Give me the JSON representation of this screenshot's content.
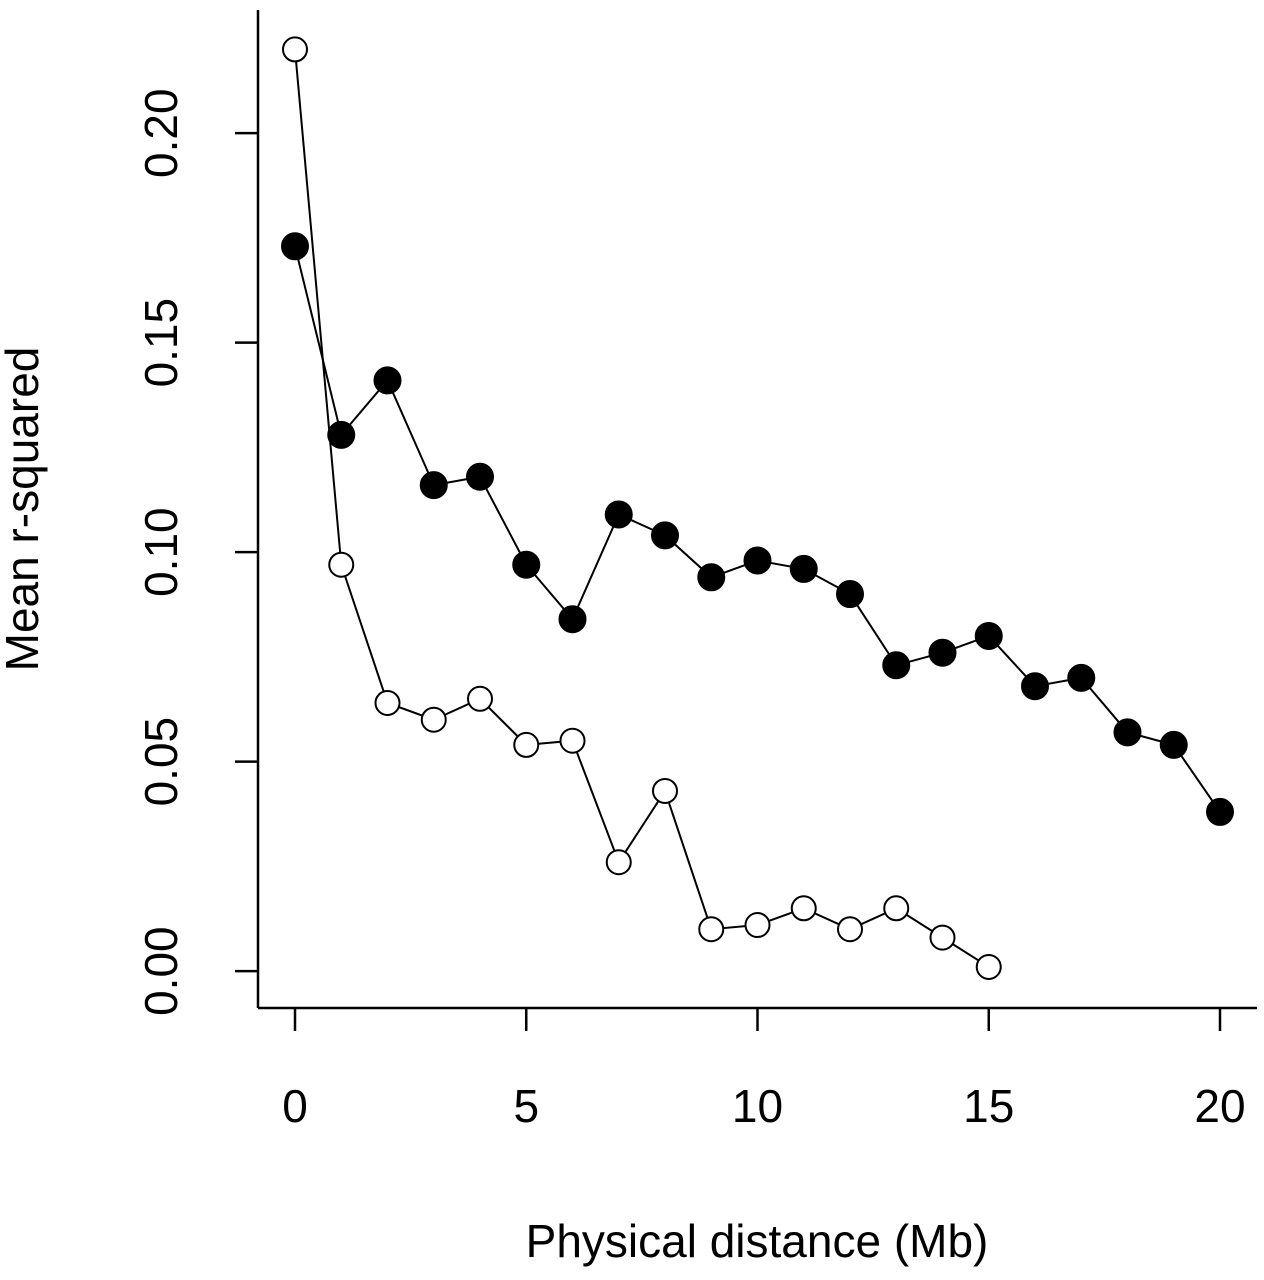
{
  "chart_data": {
    "type": "line",
    "xlabel": "Physical distance (Mb)",
    "ylabel": "Mean r-squared",
    "xlim": [
      -0.8,
      20.8
    ],
    "ylim": [
      -0.0088,
      0.2294
    ],
    "xticks": [
      0,
      5,
      10,
      15,
      20
    ],
    "yticks": [
      {
        "value": 0,
        "label": "0.00"
      },
      {
        "value": 0.05,
        "label": "0.05"
      },
      {
        "value": 0.1,
        "label": "0.10"
      },
      {
        "value": 0.15,
        "label": "0.15"
      },
      {
        "value": 0.2,
        "label": "0.20"
      }
    ],
    "series": [
      {
        "color": "#000000",
        "filled": true,
        "x": [
          0,
          1,
          2,
          3,
          4,
          5,
          6,
          7,
          8,
          9,
          10,
          11,
          12,
          13,
          14,
          15,
          16,
          17,
          18,
          19,
          20
        ],
        "values": [
          0.173,
          0.128,
          0.141,
          0.116,
          0.118,
          0.097,
          0.084,
          0.109,
          0.104,
          0.094,
          0.098,
          0.096,
          0.09,
          0.073,
          0.076,
          0.08,
          0.068,
          0.07,
          0.057,
          0.054,
          0.038
        ]
      },
      {
        "color": "#000000",
        "filled": false,
        "x": [
          0,
          1,
          2,
          3,
          4,
          5,
          6,
          7,
          8,
          9,
          10,
          11,
          12,
          13,
          14,
          15
        ],
        "values": [
          0.22,
          0.097,
          0.064,
          0.06,
          0.065,
          0.054,
          0.055,
          0.026,
          0.043,
          0.01,
          0.011,
          0.015,
          0.01,
          0.015,
          0.008,
          0.001
        ]
      }
    ]
  }
}
